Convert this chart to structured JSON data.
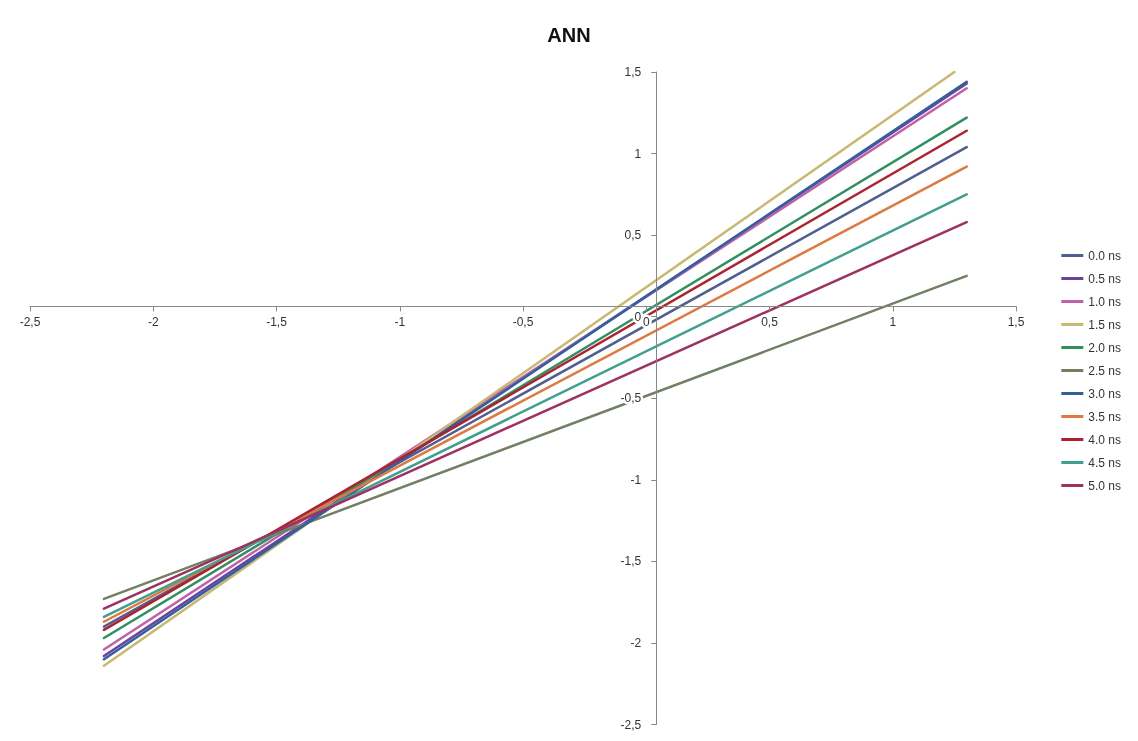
{
  "chart_data": {
    "type": "line",
    "title": "ANN",
    "x": [
      -2.2,
      1.3
    ],
    "xlim": [
      -2.5,
      1.5
    ],
    "xticks": [
      {
        "value": -2.5,
        "label": "-2,5"
      },
      {
        "value": -2,
        "label": "-2"
      },
      {
        "value": -1.5,
        "label": "-1,5"
      },
      {
        "value": -1,
        "label": "-1"
      },
      {
        "value": -0.5,
        "label": "-0,5"
      },
      {
        "value": 0,
        "label": "0"
      },
      {
        "value": 0.5,
        "label": "0,5"
      },
      {
        "value": 1,
        "label": "1"
      },
      {
        "value": 1.5,
        "label": "1,5"
      }
    ],
    "ylim": [
      -2.5,
      1.5
    ],
    "yticks": [
      {
        "value": -2.5,
        "label": "-2,5"
      },
      {
        "value": -2,
        "label": "-2"
      },
      {
        "value": -1.5,
        "label": "-1,5"
      },
      {
        "value": -1,
        "label": "-1"
      },
      {
        "value": -0.5,
        "label": "-0,5"
      },
      {
        "value": 0,
        "label": "0"
      },
      {
        "value": 0.5,
        "label": "0,5"
      },
      {
        "value": 1,
        "label": "1"
      },
      {
        "value": 1.5,
        "label": "1,5"
      }
    ],
    "grid": false,
    "legend": "right",
    "marker": "none",
    "line_style": "solid",
    "series": [
      {
        "name": "0.0 ns",
        "color": "#4f6090",
        "values": [
          -1.9,
          1.04
        ]
      },
      {
        "name": "0.5 ns",
        "color": "#7040a0",
        "values": [
          -2.08,
          1.43
        ]
      },
      {
        "name": "1.0 ns",
        "color": "#c060a8",
        "values": [
          -2.04,
          1.4
        ]
      },
      {
        "name": "1.5 ns",
        "color": "#c8b870",
        "x": [
          -2.2,
          1.25
        ],
        "values": [
          -2.14,
          1.5
        ]
      },
      {
        "name": "2.0 ns",
        "color": "#309060",
        "values": [
          -1.97,
          1.22
        ]
      },
      {
        "name": "2.5 ns",
        "color": "#708060",
        "values": [
          -1.73,
          0.25
        ]
      },
      {
        "name": "3.0 ns",
        "color": "#3060a0",
        "values": [
          -2.1,
          1.44
        ]
      },
      {
        "name": "3.5 ns",
        "color": "#e07840",
        "values": [
          -1.87,
          0.92
        ]
      },
      {
        "name": "4.0 ns",
        "color": "#b02030",
        "values": [
          -1.92,
          1.14
        ]
      },
      {
        "name": "4.5 ns",
        "color": "#40a090",
        "values": [
          -1.84,
          0.75
        ]
      },
      {
        "name": "5.0 ns",
        "color": "#a03060",
        "values": [
          -1.79,
          0.58
        ]
      }
    ]
  }
}
